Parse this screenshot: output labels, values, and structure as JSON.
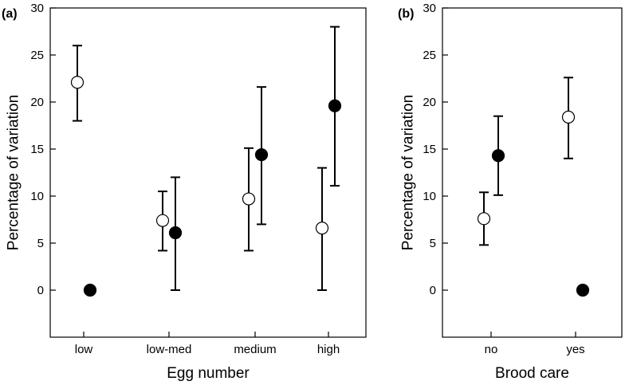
{
  "chart_data": [
    {
      "type": "scatter",
      "panel_label": "(a)",
      "xlabel": "Egg number",
      "ylabel": "Percentage of variation",
      "categories": [
        "low",
        "low-med",
        "medium",
        "high"
      ],
      "ylim": [
        -5,
        30
      ],
      "yticks": [
        0,
        5,
        10,
        15,
        20,
        25,
        30
      ],
      "grid": false,
      "legend": "none",
      "series": [
        {
          "marker": "open-circle",
          "values": [
            22.1,
            7.4,
            9.7,
            6.6
          ],
          "err_low": [
            18.0,
            4.2,
            4.2,
            0.0
          ],
          "err_high": [
            26.0,
            10.5,
            15.1,
            13.0
          ]
        },
        {
          "marker": "filled-circle",
          "values": [
            0.0,
            6.1,
            14.4,
            19.6
          ],
          "err_low": [
            null,
            0.0,
            7.0,
            11.1
          ],
          "err_high": [
            null,
            12.0,
            21.6,
            28.0
          ]
        }
      ]
    },
    {
      "type": "scatter",
      "panel_label": "(b)",
      "xlabel": "Brood care",
      "ylabel": "Percentage of variation",
      "categories": [
        "no",
        "yes"
      ],
      "ylim": [
        -5,
        30
      ],
      "yticks": [
        0,
        5,
        10,
        15,
        20,
        25,
        30
      ],
      "grid": false,
      "legend": "none",
      "series": [
        {
          "marker": "open-circle",
          "values": [
            7.6,
            18.4
          ],
          "err_low": [
            4.8,
            14.0
          ],
          "err_high": [
            10.4,
            22.6
          ]
        },
        {
          "marker": "filled-circle",
          "values": [
            14.3,
            0.0
          ],
          "err_low": [
            10.1,
            null
          ],
          "err_high": [
            18.5,
            null
          ]
        }
      ]
    }
  ]
}
